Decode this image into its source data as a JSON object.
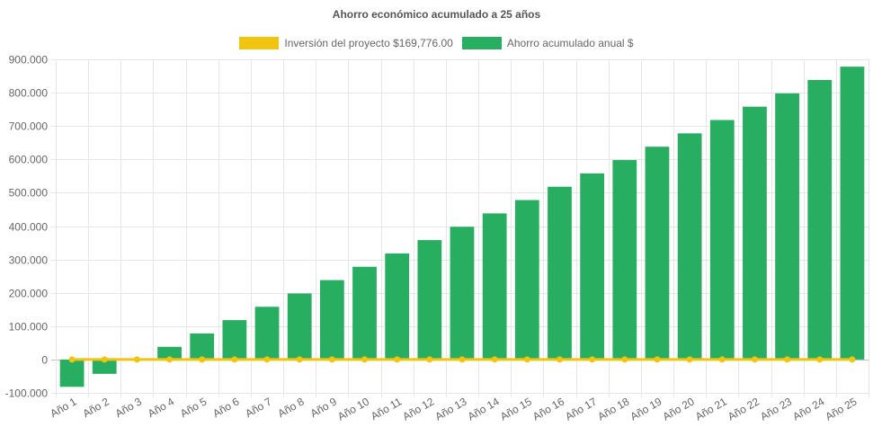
{
  "chart_data": {
    "type": "bar",
    "title": "Ahorro económico acumulado a 25 años",
    "categories": [
      "Año 1",
      "Año 2",
      "Año 3",
      "Año 4",
      "Año 5",
      "Año 6",
      "Año 7",
      "Año 8",
      "Año 9",
      "Año 10",
      "Año 11",
      "Año 12",
      "Año 13",
      "Año 14",
      "Año 15",
      "Año 16",
      "Año 17",
      "Año 18",
      "Año 19",
      "Año 20",
      "Año 21",
      "Año 22",
      "Año 23",
      "Año 24",
      "Año 25"
    ],
    "series": [
      {
        "name": "Inversión del proyecto $169,776.00",
        "type": "line",
        "color": "#f1c40f",
        "values": [
          0,
          0,
          0,
          0,
          0,
          0,
          0,
          0,
          0,
          0,
          0,
          0,
          0,
          0,
          0,
          0,
          0,
          0,
          0,
          0,
          0,
          0,
          0,
          0,
          0
        ]
      },
      {
        "name": "Ahorro acumulado anual $",
        "type": "bar",
        "color": "#27ae60",
        "values": [
          -82000,
          -43000,
          0,
          38000,
          78000,
          118000,
          158000,
          198000,
          238000,
          278000,
          318000,
          358000,
          398000,
          438000,
          478000,
          518000,
          558000,
          598000,
          638000,
          678000,
          718000,
          758000,
          798000,
          838000,
          878000
        ]
      }
    ],
    "y_ticks": [
      "900.000",
      "800.000",
      "700.000",
      "600.000",
      "500.000",
      "400.000",
      "300.000",
      "200.000",
      "100.000",
      "0",
      "-100.000"
    ],
    "ylim": [
      -100000,
      900000
    ],
    "grid": true,
    "legend_position": "top"
  }
}
